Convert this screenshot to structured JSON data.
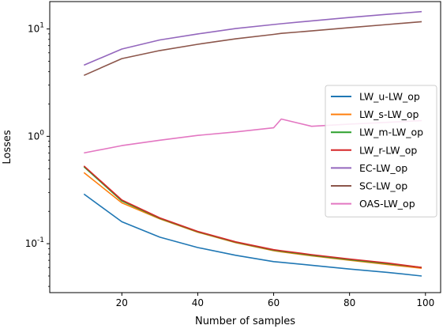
{
  "chart_data": {
    "type": "line",
    "xlabel": "Number of samples",
    "ylabel": "Losses",
    "xlim": [
      1,
      104
    ],
    "ylim": [
      0.035,
      18
    ],
    "yscale": "log",
    "x_ticks": [
      20,
      40,
      60,
      80,
      100
    ],
    "x_tick_labels": [
      "20",
      "40",
      "60",
      "80",
      "100"
    ],
    "y_ticks": [
      0.1,
      1,
      10
    ],
    "y_tick_labels": [
      "10^-1",
      "10^0",
      "10^1"
    ],
    "grid": false,
    "legend_position": "center-right",
    "x": [
      10,
      20,
      30,
      40,
      50,
      60,
      62,
      70,
      80,
      90,
      99
    ],
    "series": [
      {
        "name": "LW_u-LW_op",
        "color": "#1f77b4",
        "values": [
          0.29,
          0.16,
          0.115,
          0.092,
          0.078,
          0.068,
          0.067,
          0.063,
          0.058,
          0.054,
          0.05
        ]
      },
      {
        "name": "LW_s-LW_op",
        "color": "#ff7f0e",
        "values": [
          0.46,
          0.24,
          0.17,
          0.128,
          0.102,
          0.086,
          0.084,
          0.077,
          0.07,
          0.064,
          0.059
        ]
      },
      {
        "name": "LW_m-LW_op",
        "color": "#2ca02c",
        "values": [
          0.52,
          0.25,
          0.172,
          0.129,
          0.103,
          0.087,
          0.085,
          0.078,
          0.071,
          0.065,
          0.06
        ]
      },
      {
        "name": "LW_r-LW_op",
        "color": "#d62728",
        "values": [
          0.53,
          0.255,
          0.174,
          0.13,
          0.104,
          0.088,
          0.086,
          0.079,
          0.072,
          0.066,
          0.06
        ]
      },
      {
        "name": "EC-LW_op",
        "color": "#9467bd",
        "values": [
          4.6,
          6.5,
          7.9,
          9.0,
          10.1,
          11.0,
          11.2,
          11.9,
          12.8,
          13.7,
          14.5
        ]
      },
      {
        "name": "SC-LW_op",
        "color": "#8c564b",
        "values": [
          3.7,
          5.3,
          6.3,
          7.2,
          8.1,
          8.9,
          9.1,
          9.6,
          10.3,
          11.0,
          11.7
        ]
      },
      {
        "name": "OAS-LW_op",
        "color": "#e377c2",
        "values": [
          0.7,
          0.82,
          0.92,
          1.02,
          1.1,
          1.2,
          1.45,
          1.24,
          1.3,
          1.35,
          1.4
        ]
      }
    ]
  }
}
